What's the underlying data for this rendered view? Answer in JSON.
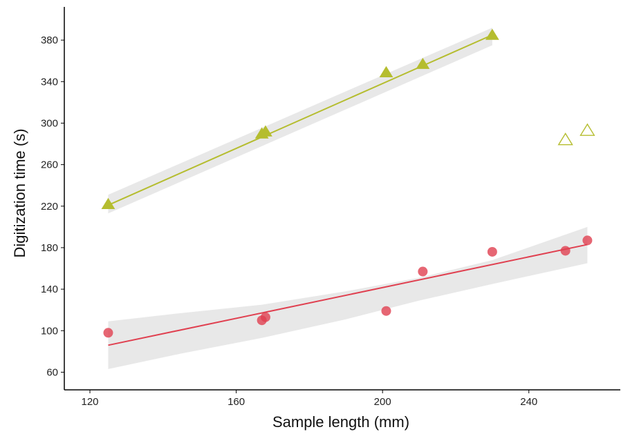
{
  "chart_data": {
    "type": "scatter",
    "xlabel": "Sample length (mm)",
    "ylabel": "Digitization time (s)",
    "xlim": [
      113,
      265
    ],
    "ylim": [
      43,
      412
    ],
    "xticks": [
      120,
      160,
      200,
      240
    ],
    "yticks": [
      60,
      100,
      140,
      180,
      220,
      260,
      300,
      340,
      380
    ],
    "grid": false,
    "legend": "none",
    "series": [
      {
        "marker": "triangle",
        "color": "#b5bd2f",
        "points": [
          {
            "x": 125,
            "y": 222
          },
          {
            "x": 167,
            "y": 290
          },
          {
            "x": 168,
            "y": 292
          },
          {
            "x": 201,
            "y": 349
          },
          {
            "x": 211,
            "y": 357
          },
          {
            "x": 230,
            "y": 385
          }
        ],
        "fit": {
          "x0": 125,
          "y0": 221,
          "x1": 230,
          "y1": 385
        },
        "band": {
          "upper": [
            [
              125,
              231
            ],
            [
              230,
              392
            ]
          ],
          "lower": [
            [
              125,
              213
            ],
            [
              230,
              375
            ]
          ]
        }
      },
      {
        "marker": "triangle-open",
        "color": "#b5bd2f",
        "points": [
          {
            "x": 250,
            "y": 284
          },
          {
            "x": 256,
            "y": 293
          }
        ]
      },
      {
        "marker": "circle",
        "color": "#e04050",
        "points": [
          {
            "x": 125,
            "y": 98
          },
          {
            "x": 167,
            "y": 110
          },
          {
            "x": 168,
            "y": 113
          },
          {
            "x": 201,
            "y": 119
          },
          {
            "x": 211,
            "y": 157
          },
          {
            "x": 230,
            "y": 176
          },
          {
            "x": 250,
            "y": 177
          },
          {
            "x": 256,
            "y": 187
          }
        ],
        "fit": {
          "x0": 125,
          "y0": 86,
          "x1": 256,
          "y1": 183
        },
        "band": {
          "upper": [
            [
              125,
              109
            ],
            [
              145,
              117
            ],
            [
              167,
              125
            ],
            [
              190,
              138
            ],
            [
              210,
              151
            ],
            [
              230,
              168
            ],
            [
              256,
              200
            ]
          ],
          "lower": [
            [
              125,
              63
            ],
            [
              145,
              78
            ],
            [
              167,
              93
            ],
            [
              190,
              111
            ],
            [
              210,
              129
            ],
            [
              230,
              145
            ],
            [
              256,
              165
            ]
          ]
        }
      }
    ]
  }
}
